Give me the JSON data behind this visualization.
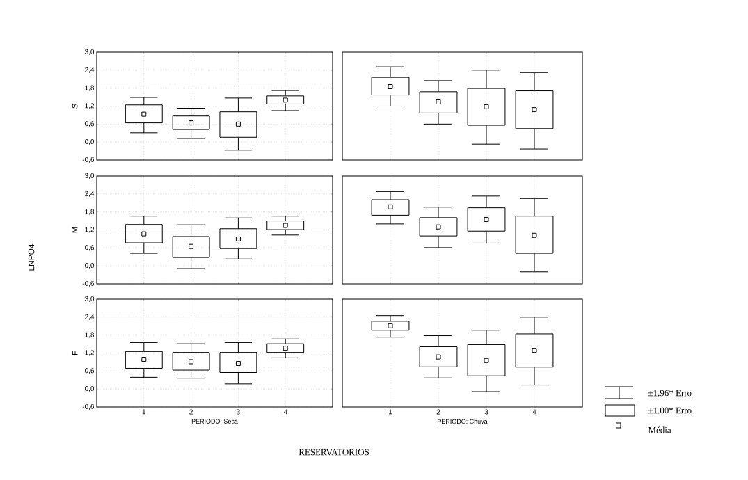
{
  "chart_data": [
    {
      "type": "box",
      "ylabel": "S",
      "categories": [
        "1",
        "2",
        "3",
        "4"
      ],
      "tick_labels": "y",
      "grid": true,
      "ylim": [
        -0.6,
        3.0
      ],
      "yticks": [
        {
          "value": -0.6,
          "label": "-0,6"
        },
        {
          "value": 0,
          "label": "0,0"
        },
        {
          "value": 0.6,
          "label": "0,6"
        },
        {
          "value": 1.2,
          "label": "1,2"
        },
        {
          "value": 1.8,
          "label": "1,8"
        },
        {
          "value": 2.4,
          "label": "2,4"
        },
        {
          "value": 3.0,
          "label": "3,0"
        }
      ],
      "boxes": [
        {
          "low": 0.31,
          "q1": 0.64,
          "median": 0.93,
          "q3": 1.24,
          "high": 1.49
        },
        {
          "low": 0.12,
          "q1": 0.42,
          "median": 0.64,
          "q3": 0.87,
          "high": 1.13
        },
        {
          "low": -0.27,
          "q1": 0.16,
          "median": 0.6,
          "q3": 1.01,
          "high": 1.47
        },
        {
          "low": 1.05,
          "q1": 1.27,
          "median": 1.4,
          "q3": 1.54,
          "high": 1.72
        }
      ]
    },
    {
      "type": "box",
      "categories": [
        "1",
        "2",
        "3",
        "4"
      ],
      "tick_labels": false,
      "grid": true,
      "ylim": [
        -0.6,
        3.0
      ],
      "boxes": [
        {
          "low": 1.2,
          "q1": 1.57,
          "median": 1.85,
          "q3": 2.16,
          "high": 2.51
        },
        {
          "low": 0.6,
          "q1": 0.97,
          "median": 1.34,
          "q3": 1.68,
          "high": 2.05
        },
        {
          "low": -0.07,
          "q1": 0.56,
          "median": 1.18,
          "q3": 1.79,
          "high": 2.4
        },
        {
          "low": -0.23,
          "q1": 0.45,
          "median": 1.08,
          "q3": 1.71,
          "high": 2.32
        }
      ]
    },
    {
      "type": "box",
      "ylabel": "M",
      "categories": [
        "1",
        "2",
        "3",
        "4"
      ],
      "tick_labels": "y",
      "grid": true,
      "ylim": [
        -0.6,
        3.0
      ],
      "yticks": [
        {
          "value": -0.6,
          "label": "-0,6"
        },
        {
          "value": 0,
          "label": "0,0"
        },
        {
          "value": 0.6,
          "label": "0,6"
        },
        {
          "value": 1.2,
          "label": "1,2"
        },
        {
          "value": 1.8,
          "label": "1,8"
        },
        {
          "value": 2.4,
          "label": "2,4"
        },
        {
          "value": 3.0,
          "label": "3,0"
        }
      ],
      "boxes": [
        {
          "low": 0.42,
          "q1": 0.77,
          "median": 1.07,
          "q3": 1.38,
          "high": 1.66
        },
        {
          "low": -0.09,
          "q1": 0.28,
          "median": 0.65,
          "q3": 0.98,
          "high": 1.37
        },
        {
          "low": 0.23,
          "q1": 0.58,
          "median": 0.9,
          "q3": 1.24,
          "high": 1.6
        },
        {
          "low": 1.03,
          "q1": 1.21,
          "median": 1.35,
          "q3": 1.5,
          "high": 1.66
        }
      ]
    },
    {
      "type": "box",
      "categories": [
        "1",
        "2",
        "3",
        "4"
      ],
      "tick_labels": false,
      "grid": true,
      "ylim": [
        -0.6,
        3.0
      ],
      "boxes": [
        {
          "low": 1.4,
          "q1": 1.69,
          "median": 1.97,
          "q3": 2.21,
          "high": 2.48
        },
        {
          "low": 0.61,
          "q1": 1.0,
          "median": 1.3,
          "q3": 1.61,
          "high": 1.96
        },
        {
          "low": 0.76,
          "q1": 1.16,
          "median": 1.55,
          "q3": 1.94,
          "high": 2.33
        },
        {
          "low": -0.2,
          "q1": 0.42,
          "median": 1.02,
          "q3": 1.66,
          "high": 2.25
        }
      ]
    },
    {
      "type": "box",
      "ylabel": "F",
      "xlabel": "PERIODO: Seca",
      "categories": [
        "1",
        "2",
        "3",
        "4"
      ],
      "grid": true,
      "ylim": [
        -0.6,
        3.0
      ],
      "yticks": [
        {
          "value": -0.6,
          "label": "-0,6"
        },
        {
          "value": 0,
          "label": "0,0"
        },
        {
          "value": 0.6,
          "label": "0,6"
        },
        {
          "value": 1.2,
          "label": "1,2"
        },
        {
          "value": 1.8,
          "label": "1,8"
        },
        {
          "value": 2.4,
          "label": "2,4"
        },
        {
          "value": 3.0,
          "label": "3,0"
        }
      ],
      "boxes": [
        {
          "low": 0.39,
          "q1": 0.69,
          "median": 0.99,
          "q3": 1.25,
          "high": 1.55
        },
        {
          "low": 0.36,
          "q1": 0.63,
          "median": 0.91,
          "q3": 1.22,
          "high": 1.51
        },
        {
          "low": 0.17,
          "q1": 0.55,
          "median": 0.85,
          "q3": 1.22,
          "high": 1.55
        },
        {
          "low": 1.04,
          "q1": 1.22,
          "median": 1.36,
          "q3": 1.51,
          "high": 1.67
        }
      ]
    },
    {
      "type": "box",
      "xlabel": "PERIODO: Chuva",
      "categories": [
        "1",
        "2",
        "3",
        "4"
      ],
      "tick_labels": "x",
      "grid": true,
      "ylim": [
        -0.6,
        3.0
      ],
      "boxes": [
        {
          "low": 1.73,
          "q1": 1.96,
          "median": 2.11,
          "q3": 2.26,
          "high": 2.45
        },
        {
          "low": 0.37,
          "q1": 0.74,
          "median": 1.07,
          "q3": 1.41,
          "high": 1.78
        },
        {
          "low": -0.09,
          "q1": 0.44,
          "median": 0.95,
          "q3": 1.48,
          "high": 1.96
        },
        {
          "low": 0.13,
          "q1": 0.73,
          "median": 1.29,
          "q3": 1.84,
          "high": 2.4
        }
      ]
    },
    {
      "type": "other",
      "ylabel": "LNPO4",
      "xlabel": "RESERVATORIOS",
      "annotations": [
        "±1.96* Erro",
        "±1.00* Erro",
        "Média"
      ]
    }
  ]
}
